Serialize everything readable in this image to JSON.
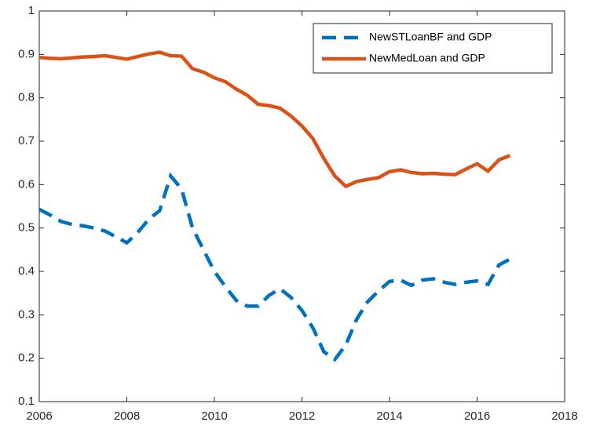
{
  "chart_data": {
    "type": "line",
    "x": [
      2006,
      2006.25,
      2006.5,
      2006.75,
      2007,
      2007.25,
      2007.5,
      2007.75,
      2008,
      2008.25,
      2008.5,
      2008.75,
      2009,
      2009.25,
      2009.5,
      2009.75,
      2010,
      2010.25,
      2010.5,
      2010.75,
      2011,
      2011.25,
      2011.5,
      2011.75,
      2012,
      2012.25,
      2012.5,
      2012.75,
      2013,
      2013.25,
      2013.5,
      2013.75,
      2014,
      2014.25,
      2014.5,
      2014.75,
      2015,
      2015.25,
      2015.5,
      2015.75,
      2016,
      2016.25,
      2016.5,
      2016.75
    ],
    "series": [
      {
        "name": "NewSTLoanBF and GDP",
        "color": "#0072bd",
        "style": "dashed",
        "values": [
          0.543,
          0.53,
          0.515,
          0.508,
          0.505,
          0.5,
          0.493,
          0.48,
          0.466,
          0.49,
          0.52,
          0.54,
          0.62,
          0.59,
          0.5,
          0.45,
          0.4,
          0.365,
          0.333,
          0.32,
          0.32,
          0.345,
          0.36,
          0.34,
          0.31,
          0.27,
          0.215,
          0.197,
          0.23,
          0.29,
          0.33,
          0.355,
          0.377,
          0.38,
          0.368,
          0.38,
          0.383,
          0.375,
          0.37,
          0.375,
          0.378,
          0.37,
          0.415,
          0.428
        ]
      },
      {
        "name": "NewMedLoan and GDP",
        "color": "#d95319",
        "style": "solid",
        "values": [
          0.893,
          0.891,
          0.89,
          0.892,
          0.894,
          0.895,
          0.897,
          0.893,
          0.889,
          0.895,
          0.901,
          0.905,
          0.897,
          0.896,
          0.867,
          0.859,
          0.846,
          0.837,
          0.82,
          0.806,
          0.785,
          0.782,
          0.776,
          0.758,
          0.735,
          0.706,
          0.66,
          0.62,
          0.596,
          0.607,
          0.612,
          0.616,
          0.63,
          0.634,
          0.628,
          0.625,
          0.626,
          0.624,
          0.623,
          0.636,
          0.648,
          0.631,
          0.657,
          0.667
        ]
      }
    ],
    "xlim": [
      2006,
      2018
    ],
    "xticks": [
      2006,
      2008,
      2010,
      2012,
      2014,
      2016,
      2018
    ],
    "ylim": [
      0.1,
      1
    ],
    "yticks": [
      0.1,
      0.2,
      0.3,
      0.4,
      0.5,
      0.6,
      0.7,
      0.8,
      0.9,
      1
    ],
    "grid": false,
    "legend": "northeast"
  }
}
